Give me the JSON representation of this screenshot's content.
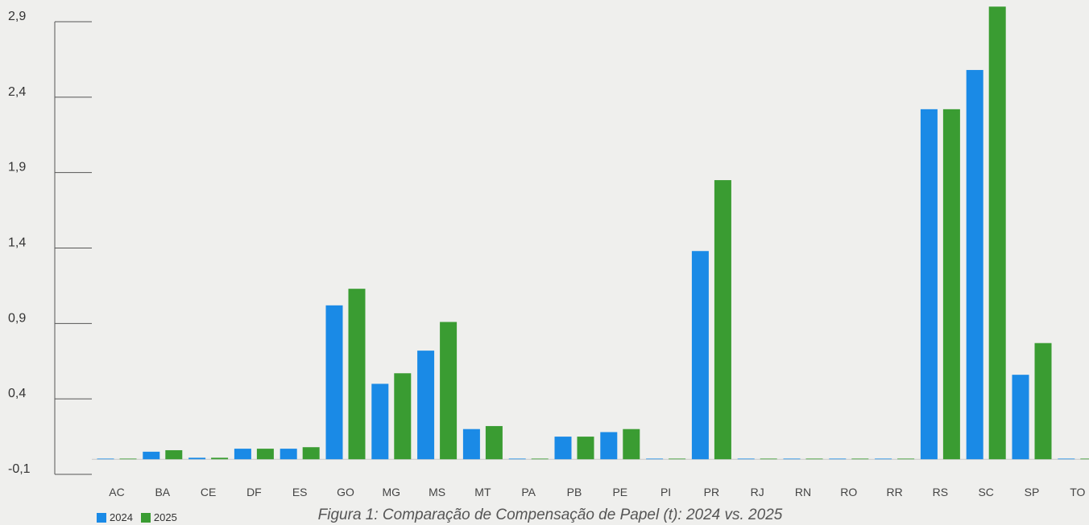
{
  "chart_data": {
    "type": "bar",
    "title": "",
    "xlabel": "",
    "ylabel": "",
    "ylim": [
      -0.1,
      2.9
    ],
    "yticks": [
      "2,9",
      "2,4",
      "1,9",
      "1,4",
      "0,9",
      "0,4",
      "-0,1"
    ],
    "ytick_values": [
      2.9,
      2.4,
      1.9,
      1.4,
      0.9,
      0.4,
      -0.1
    ],
    "categories": [
      "AC",
      "BA",
      "CE",
      "DF",
      "ES",
      "GO",
      "MG",
      "MS",
      "MT",
      "PA",
      "PB",
      "PE",
      "PI",
      "PR",
      "RJ",
      "RN",
      "RO",
      "RR",
      "RS",
      "SC",
      "SP",
      "TO"
    ],
    "series": [
      {
        "name": "2024",
        "color": "#1a8ae6",
        "values": [
          0.0,
          0.05,
          0.01,
          0.07,
          0.07,
          1.02,
          0.5,
          0.72,
          0.2,
          0.0,
          0.15,
          0.18,
          0.0,
          1.38,
          0.0,
          0.0,
          0.0,
          0.0,
          2.32,
          2.58,
          0.56,
          0.0
        ]
      },
      {
        "name": "2025",
        "color": "#3a9c32",
        "values": [
          0.0,
          0.06,
          0.01,
          0.07,
          0.08,
          1.13,
          0.57,
          0.91,
          0.22,
          0.0,
          0.15,
          0.2,
          0.0,
          1.85,
          0.0,
          0.0,
          0.0,
          0.0,
          2.32,
          3.0,
          0.77,
          0.0
        ]
      }
    ],
    "legend_position": "bottom-left",
    "grid": false
  },
  "caption": "Figura 1: Comparação de Compensação de Papel (t): 2024 vs. 2025"
}
